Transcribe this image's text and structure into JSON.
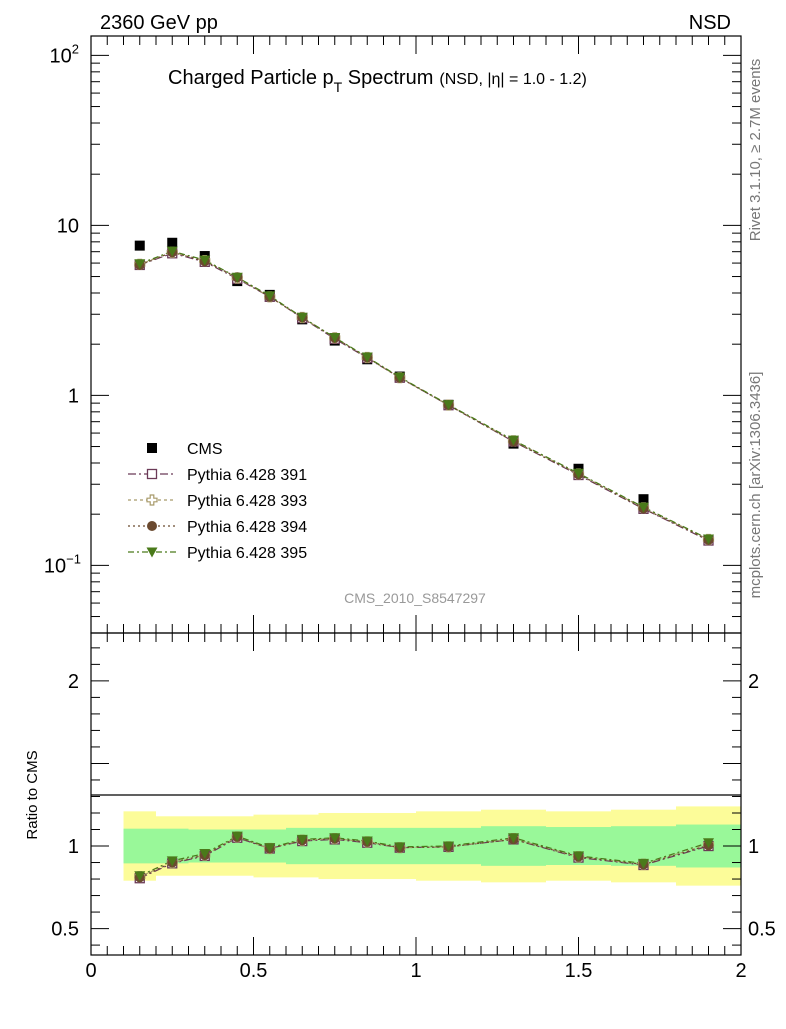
{
  "header": {
    "left": "2360 GeV pp",
    "right": "NSD"
  },
  "side_texts": {
    "top": "Rivet 3.1.10, ≥ 2.7M events",
    "bottom": "mcplots.cern.ch [arXiv:1306.3436]"
  },
  "watermark": "CMS_2010_S8547297",
  "title": {
    "main": "Charged Particle p",
    "sub": "T",
    "tail": " Spectrum",
    "small": "(NSD, |η| = 1.0 - 1.2)"
  },
  "colors": {
    "cms": "#000000",
    "s391": "#6b3a57",
    "s393": "#a89a6a",
    "s394": "#6b4a2f",
    "s395": "#4a7a1a",
    "band_inner": "#99f899",
    "band_outer": "#fcfc99"
  },
  "chart_data": [
    {
      "type": "scatter",
      "panel": "main",
      "yscale": "log",
      "xlim": [
        0,
        2
      ],
      "ylim": [
        0.04,
        130
      ],
      "yticks": [
        {
          "value": 0.1,
          "label": "10",
          "exp": "−1"
        },
        {
          "value": 1,
          "label": "1",
          "exp": ""
        },
        {
          "value": 10,
          "label": "10",
          "exp": ""
        },
        {
          "value": 100,
          "label": "10",
          "exp": "2"
        }
      ],
      "x": [
        0.15,
        0.25,
        0.35,
        0.45,
        0.55,
        0.65,
        0.75,
        0.85,
        0.95,
        1.1,
        1.3,
        1.5,
        1.7,
        1.9
      ],
      "series": [
        {
          "name": "CMS",
          "marker": "square",
          "values": [
            7.6,
            7.9,
            6.6,
            4.7,
            3.9,
            2.8,
            2.1,
            1.63,
            1.29,
            0.88,
            0.52,
            0.37,
            0.245,
            0.14
          ]
        },
        {
          "name": "Pythia 6.428 391",
          "marker": "open-square",
          "values": [
            5.85,
            6.85,
            6.1,
            4.85,
            3.8,
            2.85,
            2.15,
            1.66,
            1.27,
            0.875,
            0.535,
            0.34,
            0.215,
            0.14
          ]
        },
        {
          "name": "Pythia 6.428 393",
          "marker": "open-cross",
          "values": [
            5.9,
            6.95,
            6.2,
            4.9,
            3.8,
            2.87,
            2.18,
            1.67,
            1.27,
            0.877,
            0.54,
            0.345,
            0.218,
            0.142
          ]
        },
        {
          "name": "Pythia 6.428 394",
          "marker": "circle",
          "values": [
            5.85,
            6.95,
            6.15,
            4.95,
            3.8,
            2.87,
            2.18,
            1.67,
            1.27,
            0.877,
            0.535,
            0.343,
            0.216,
            0.141
          ]
        },
        {
          "name": "Pythia 6.428 395",
          "marker": "triangle-down",
          "values": [
            5.95,
            7.05,
            6.25,
            4.95,
            3.85,
            2.88,
            2.19,
            1.68,
            1.28,
            0.882,
            0.545,
            0.348,
            0.22,
            0.143
          ]
        }
      ]
    },
    {
      "type": "scatter",
      "panel": "ratio",
      "ylabel": "Ratio to CMS",
      "xlim": [
        0,
        2
      ],
      "ylim": [
        0.34,
        2.29
      ],
      "yticks": [
        0.5,
        1,
        2
      ],
      "xticks": [
        0,
        0.5,
        1,
        1.5,
        2
      ],
      "xtick_labels": [
        "0",
        "0.5",
        "1",
        "1.5",
        "2"
      ],
      "x": [
        0.15,
        0.25,
        0.35,
        0.45,
        0.55,
        0.65,
        0.75,
        0.85,
        0.95,
        1.1,
        1.3,
        1.5,
        1.7,
        1.9
      ],
      "bins": [
        [
          0.1,
          0.2
        ],
        [
          0.2,
          0.3
        ],
        [
          0.3,
          0.4
        ],
        [
          0.4,
          0.5
        ],
        [
          0.5,
          0.6
        ],
        [
          0.6,
          0.7
        ],
        [
          0.7,
          0.8
        ],
        [
          0.8,
          0.9
        ],
        [
          0.9,
          1.0
        ],
        [
          1.0,
          1.2
        ],
        [
          1.2,
          1.4
        ],
        [
          1.4,
          1.6
        ],
        [
          1.6,
          1.8
        ],
        [
          1.8,
          2.0
        ]
      ],
      "band_inner": [
        [
          0.895,
          1.105
        ],
        [
          0.895,
          1.105
        ],
        [
          0.9,
          1.1
        ],
        [
          0.9,
          1.1
        ],
        [
          0.9,
          1.1
        ],
        [
          0.89,
          1.11
        ],
        [
          0.89,
          1.11
        ],
        [
          0.89,
          1.11
        ],
        [
          0.89,
          1.11
        ],
        [
          0.89,
          1.11
        ],
        [
          0.88,
          1.12
        ],
        [
          0.885,
          1.115
        ],
        [
          0.88,
          1.12
        ],
        [
          0.87,
          1.13
        ]
      ],
      "band_outer": [
        [
          0.79,
          1.21
        ],
        [
          0.82,
          1.18
        ],
        [
          0.82,
          1.18
        ],
        [
          0.82,
          1.18
        ],
        [
          0.81,
          1.19
        ],
        [
          0.81,
          1.19
        ],
        [
          0.8,
          1.2
        ],
        [
          0.8,
          1.2
        ],
        [
          0.8,
          1.2
        ],
        [
          0.79,
          1.21
        ],
        [
          0.78,
          1.22
        ],
        [
          0.79,
          1.21
        ],
        [
          0.78,
          1.22
        ],
        [
          0.76,
          1.24
        ]
      ],
      "series": [
        {
          "name": "Pythia 6.428 391",
          "marker": "open-square",
          "values": [
            0.805,
            0.895,
            0.94,
            1.05,
            0.985,
            1.03,
            1.04,
            1.02,
            0.99,
            0.995,
            1.04,
            0.93,
            0.885,
            1.0
          ]
        },
        {
          "name": "Pythia 6.428 393",
          "marker": "open-cross",
          "values": [
            0.815,
            0.9,
            0.945,
            1.055,
            0.985,
            1.035,
            1.045,
            1.025,
            0.99,
            0.995,
            1.045,
            0.935,
            0.89,
            1.01
          ]
        },
        {
          "name": "Pythia 6.428 394",
          "marker": "circle",
          "values": [
            0.81,
            0.9,
            0.945,
            1.055,
            0.985,
            1.035,
            1.045,
            1.025,
            0.99,
            0.995,
            1.04,
            0.935,
            0.888,
            1.005
          ]
        },
        {
          "name": "Pythia 6.428 395",
          "marker": "triangle-down",
          "values": [
            0.82,
            0.91,
            0.955,
            1.06,
            0.99,
            1.04,
            1.05,
            1.03,
            0.995,
            1.0,
            1.05,
            0.94,
            0.895,
            1.02
          ]
        }
      ]
    }
  ]
}
